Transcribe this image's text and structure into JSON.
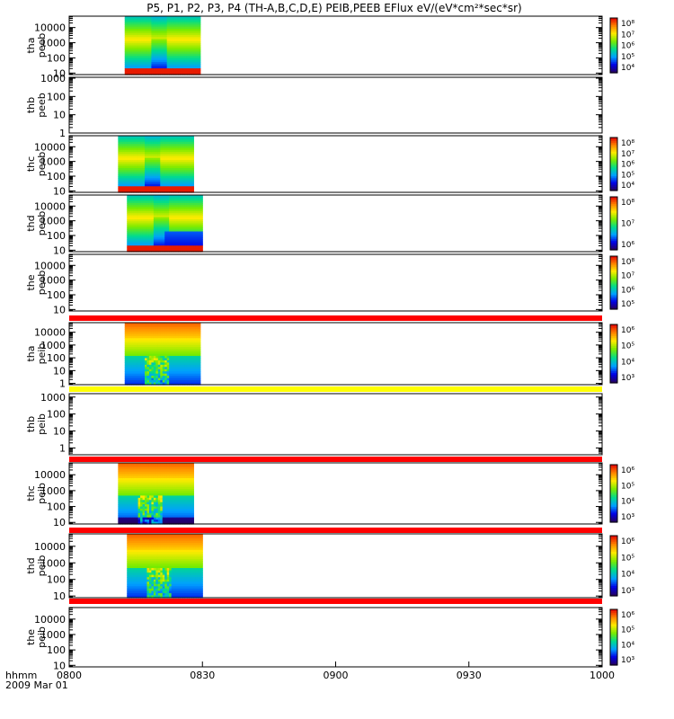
{
  "chart_data": {
    "type": "heatmap",
    "title": "P5, P1, P2, P3, P4 (TH-A,B,C,D,E) PEIB,PEEB EFlux eV/(eV*cm²*sec*sr)",
    "time_axis": {
      "label": "hhmm",
      "date": "2009 Mar 01",
      "ticks": [
        "0800",
        "0830",
        "0900",
        "0930",
        "1000"
      ],
      "range_minutes": [
        0,
        120
      ]
    },
    "panels": [
      {
        "label1": "tha",
        "label2": "peeb",
        "y_ticks": [
          "10000",
          "1000",
          "100",
          "10"
        ],
        "y_log_range": [
          0.9,
          4.75
        ],
        "data_minutes": [
          12.5,
          29.5
        ],
        "pattern": "peeb",
        "flag_bar": null,
        "colorbar_ticks": [
          "10⁸",
          "10⁷",
          "10⁶",
          "10⁵",
          "10⁴"
        ]
      },
      {
        "label1": "thb",
        "label2": "peeb",
        "y_ticks": [
          "1000",
          "100",
          "10",
          "1"
        ],
        "y_log_range": [
          0,
          3.05
        ],
        "data_minutes": null,
        "pattern": "none",
        "flag_bar": null,
        "colorbar_ticks": []
      },
      {
        "label1": "thc",
        "label2": "peeb",
        "y_ticks": [
          "10000",
          "1000",
          "100",
          "10"
        ],
        "y_log_range": [
          0.9,
          4.75
        ],
        "data_minutes": [
          11,
          28
        ],
        "pattern": "peeb",
        "flag_bar": null,
        "colorbar_ticks": [
          "10⁸",
          "10⁷",
          "10⁶",
          "10⁵",
          "10⁴"
        ]
      },
      {
        "label1": "thd",
        "label2": "peeb",
        "y_ticks": [
          "10000",
          "1000",
          "100",
          "10"
        ],
        "y_log_range": [
          0.9,
          4.75
        ],
        "data_minutes": [
          13,
          30
        ],
        "pattern": "peeb_d",
        "flag_bar": null,
        "colorbar_ticks": [
          "10⁸",
          "10⁷",
          "10⁶"
        ]
      },
      {
        "label1": "the",
        "label2": "peeb",
        "y_ticks": [
          "10000",
          "1000",
          "100",
          "10"
        ],
        "y_log_range": [
          0.9,
          4.75
        ],
        "data_minutes": null,
        "pattern": "none",
        "flag_bar": "red",
        "colorbar_ticks": [
          "10⁸",
          "10⁷",
          "10⁶",
          "10⁵"
        ]
      },
      {
        "label1": "tha",
        "label2": "peib",
        "y_ticks": [
          "10000",
          "1000",
          "100",
          "10",
          "1"
        ],
        "y_log_range": [
          -0.1,
          4.75
        ],
        "data_minutes": [
          12.5,
          29.5
        ],
        "pattern": "peib",
        "flag_bar": "yellow",
        "colorbar_ticks": [
          "10⁶",
          "10⁵",
          "10⁴",
          "10³"
        ]
      },
      {
        "label1": "thb",
        "label2": "peib",
        "y_ticks": [
          "1000",
          "100",
          "10",
          "1"
        ],
        "y_log_range": [
          -0.4,
          3.2
        ],
        "data_minutes": null,
        "pattern": "none",
        "flag_bar": "red",
        "colorbar_ticks": []
      },
      {
        "label1": "thc",
        "label2": "peib",
        "y_ticks": [
          "10000",
          "1000",
          "100",
          "10"
        ],
        "y_log_range": [
          0.9,
          4.75
        ],
        "data_minutes": [
          11,
          28
        ],
        "pattern": "peib_c",
        "flag_bar": "red",
        "colorbar_ticks": [
          "10⁶",
          "10⁵",
          "10⁴",
          "10³"
        ]
      },
      {
        "label1": "thd",
        "label2": "peib",
        "y_ticks": [
          "10000",
          "1000",
          "100",
          "10"
        ],
        "y_log_range": [
          0.9,
          4.75
        ],
        "data_minutes": [
          13,
          30
        ],
        "pattern": "peib",
        "flag_bar": "red",
        "colorbar_ticks": [
          "10⁶",
          "10⁵",
          "10⁴",
          "10³"
        ]
      },
      {
        "label1": "the",
        "label2": "peib",
        "y_ticks": [
          "10000",
          "1000",
          "100",
          "10"
        ],
        "y_log_range": [
          0.9,
          4.75
        ],
        "data_minutes": null,
        "pattern": "none",
        "flag_bar": null,
        "colorbar_ticks": [
          "10⁶",
          "10⁵",
          "10⁴",
          "10³"
        ]
      }
    ]
  }
}
